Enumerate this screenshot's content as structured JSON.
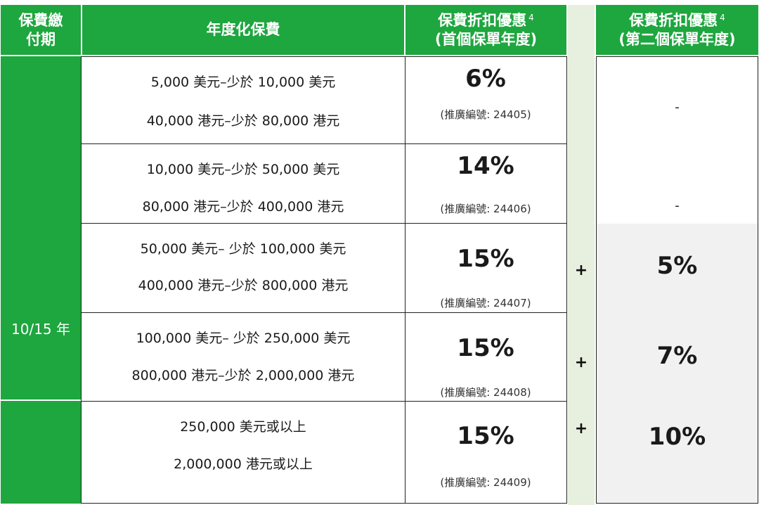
{
  "header": {
    "col1": "保費繳\n付期",
    "col2": "年度化保費",
    "col3_line1": "保費折扣優惠",
    "col3_line2": "(首個保單年度)",
    "col4_line1": "保費折扣優惠",
    "col4_line2": "(第二個保單年度)",
    "footnote_mark": "4"
  },
  "term_label": "10/15 年",
  "rows": [
    {
      "premium_usd": "5,000 美元–少於 10,000 美元",
      "premium_hkd": "40,000 港元–少於 80,000 港元",
      "first_year_rate": "6%",
      "promo_code": "(推廣編號: 24405)",
      "second_year": "-",
      "plus": ""
    },
    {
      "premium_usd": "10,000 美元–少於 50,000 美元",
      "premium_hkd": "80,000 港元–少於 400,000 港元",
      "first_year_rate": "14%",
      "promo_code": "(推廣編號: 24406)",
      "second_year": "-",
      "plus": ""
    },
    {
      "premium_usd": "50,000 美元– 少於 100,000 美元",
      "premium_hkd": "400,000 港元–少於 800,000 港元",
      "first_year_rate": "15%",
      "promo_code": "(推廣編號: 24407)",
      "second_year": "5%",
      "plus": "+"
    },
    {
      "premium_usd": "100,000 美元– 少於 250,000 美元",
      "premium_hkd": "800,000 港元–少於 2,000,000 港元",
      "first_year_rate": "15%",
      "promo_code": "(推廣編號: 24408)",
      "second_year": "7%",
      "plus": "+"
    },
    {
      "premium_usd": "250,000 美元或以上",
      "premium_hkd": "2,000,000 港元或以上",
      "first_year_rate": "15%",
      "promo_code": "(推廣編號: 24409)",
      "second_year": "10%",
      "plus": "+"
    }
  ],
  "colors": {
    "header_green": "#1ea63f",
    "plus_band": "#e7efde",
    "second_year_grey": "#f1f1f1"
  }
}
